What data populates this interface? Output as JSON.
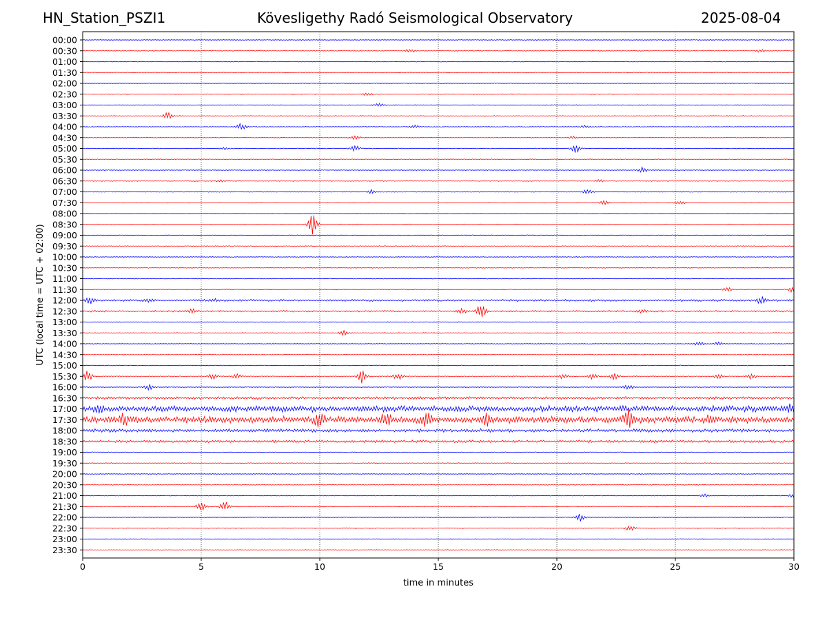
{
  "header": {
    "station": "HN_Station_PSZI1",
    "observatory": "Kövesligethy Radó Seismological Observatory",
    "date": "2025-08-04"
  },
  "chart_data": {
    "type": "line",
    "title": "Kövesligethy Radó Seismological Observatory",
    "xlabel": "time in minutes",
    "ylabel": "UTC (local time = UTC + 02:00)",
    "xlim": [
      0,
      30
    ],
    "x_ticks": [
      0,
      5,
      10,
      15,
      20,
      25,
      30
    ],
    "vertical_grid": true,
    "grid_style": "dotted",
    "trace_colors": [
      "#0000ff",
      "#ff0000"
    ],
    "rows": [
      "00:00",
      "00:30",
      "01:00",
      "01:30",
      "02:00",
      "02:30",
      "03:00",
      "03:30",
      "04:00",
      "04:30",
      "05:00",
      "05:30",
      "06:00",
      "06:30",
      "07:00",
      "07:30",
      "08:00",
      "08:30",
      "09:00",
      "09:30",
      "10:00",
      "10:30",
      "11:00",
      "11:30",
      "12:00",
      "12:30",
      "13:00",
      "13:30",
      "14:00",
      "14:30",
      "15:00",
      "15:30",
      "16:00",
      "16:30",
      "17:00",
      "17:30",
      "18:00",
      "18:30",
      "19:00",
      "19:30",
      "20:00",
      "20:30",
      "21:00",
      "21:30",
      "22:00",
      "22:30",
      "23:00",
      "23:30"
    ],
    "bursts": [
      {
        "row": "00:30",
        "t": 13.8,
        "amp": 2.5
      },
      {
        "row": "00:30",
        "t": 28.6,
        "amp": 2
      },
      {
        "row": "02:30",
        "t": 12.0,
        "amp": 2
      },
      {
        "row": "03:00",
        "t": 12.5,
        "amp": 2.5
      },
      {
        "row": "03:30",
        "t": 3.6,
        "amp": 5
      },
      {
        "row": "04:00",
        "t": 6.7,
        "amp": 5
      },
      {
        "row": "04:00",
        "t": 14.0,
        "amp": 2
      },
      {
        "row": "04:00",
        "t": 21.2,
        "amp": 2
      },
      {
        "row": "04:30",
        "t": 11.5,
        "amp": 3
      },
      {
        "row": "04:30",
        "t": 20.7,
        "amp": 2
      },
      {
        "row": "05:00",
        "t": 11.5,
        "amp": 4
      },
      {
        "row": "05:00",
        "t": 6.0,
        "amp": 2
      },
      {
        "row": "05:00",
        "t": 20.8,
        "amp": 6
      },
      {
        "row": "06:00",
        "t": 23.6,
        "amp": 4
      },
      {
        "row": "06:30",
        "t": 5.8,
        "amp": 2
      },
      {
        "row": "06:30",
        "t": 21.8,
        "amp": 2
      },
      {
        "row": "07:00",
        "t": 12.2,
        "amp": 3
      },
      {
        "row": "07:00",
        "t": 21.3,
        "amp": 4
      },
      {
        "row": "07:30",
        "t": 22.0,
        "amp": 3
      },
      {
        "row": "07:30",
        "t": 25.2,
        "amp": 3
      },
      {
        "row": "08:30",
        "t": 9.7,
        "amp": 14
      },
      {
        "row": "11:30",
        "t": 27.2,
        "amp": 3
      },
      {
        "row": "11:30",
        "t": 30.0,
        "amp": 6
      },
      {
        "row": "12:00",
        "t": 0.3,
        "amp": 5
      },
      {
        "row": "12:00",
        "t": 28.6,
        "amp": 5
      },
      {
        "row": "12:00",
        "t": 2.8,
        "amp": 2
      },
      {
        "row": "12:00",
        "t": 5.5,
        "amp": 2
      },
      {
        "row": "12:30",
        "t": 16.0,
        "amp": 3
      },
      {
        "row": "12:30",
        "t": 16.8,
        "amp": 9
      },
      {
        "row": "12:30",
        "t": 4.6,
        "amp": 3
      },
      {
        "row": "12:30",
        "t": 23.6,
        "amp": 2
      },
      {
        "row": "13:30",
        "t": 11.0,
        "amp": 3
      },
      {
        "row": "14:00",
        "t": 26.0,
        "amp": 3
      },
      {
        "row": "14:00",
        "t": 26.8,
        "amp": 3
      },
      {
        "row": "15:30",
        "t": 0.2,
        "amp": 8
      },
      {
        "row": "15:30",
        "t": 11.8,
        "amp": 10
      },
      {
        "row": "15:30",
        "t": 5.5,
        "amp": 4
      },
      {
        "row": "15:30",
        "t": 6.5,
        "amp": 3
      },
      {
        "row": "15:30",
        "t": 13.3,
        "amp": 5
      },
      {
        "row": "15:30",
        "t": 20.3,
        "amp": 4
      },
      {
        "row": "15:30",
        "t": 21.5,
        "amp": 4
      },
      {
        "row": "15:30",
        "t": 22.4,
        "amp": 5
      },
      {
        "row": "15:30",
        "t": 26.8,
        "amp": 3
      },
      {
        "row": "15:30",
        "t": 28.2,
        "amp": 4
      },
      {
        "row": "16:00",
        "t": 2.8,
        "amp": 4
      },
      {
        "row": "16:00",
        "t": 23.0,
        "amp": 4
      },
      {
        "row": "17:00",
        "t": 0.7,
        "amp": 5
      },
      {
        "row": "17:00",
        "t": 29.8,
        "amp": 6
      },
      {
        "row": "17:30",
        "t": 10.0,
        "amp": 8
      },
      {
        "row": "17:30",
        "t": 12.8,
        "amp": 9
      },
      {
        "row": "17:30",
        "t": 14.5,
        "amp": 9
      },
      {
        "row": "17:30",
        "t": 17.0,
        "amp": 8
      },
      {
        "row": "17:30",
        "t": 23.0,
        "amp": 13
      },
      {
        "row": "17:30",
        "t": 1.7,
        "amp": 6
      },
      {
        "row": "17:30",
        "t": 26.5,
        "amp": 5
      },
      {
        "row": "21:00",
        "t": 26.2,
        "amp": 2
      },
      {
        "row": "21:00",
        "t": 30.0,
        "amp": 3
      },
      {
        "row": "21:30",
        "t": 5.0,
        "amp": 6
      },
      {
        "row": "21:30",
        "t": 6.0,
        "amp": 7
      },
      {
        "row": "22:00",
        "t": 21.0,
        "amp": 5
      },
      {
        "row": "22:30",
        "t": 23.1,
        "amp": 4
      }
    ],
    "noisy_rows": {
      "16:30": 1.5,
      "17:00": 3.5,
      "17:30": 4.0,
      "18:00": 2.0,
      "18:30": 1.5,
      "12:00": 1.2,
      "12:30": 1.0
    }
  }
}
